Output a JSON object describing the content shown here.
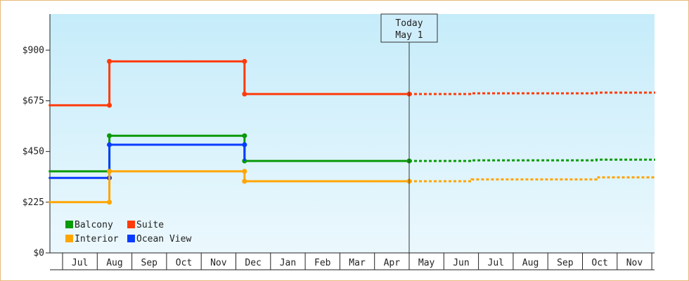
{
  "chart_data": {
    "type": "line",
    "y_ticks": [
      {
        "value": 0,
        "label": "$0"
      },
      {
        "value": 225,
        "label": "$225"
      },
      {
        "value": 450,
        "label": "$450"
      },
      {
        "value": 675,
        "label": "$675"
      },
      {
        "value": 900,
        "label": "$900"
      }
    ],
    "ylim": [
      0,
      1060
    ],
    "months": [
      "Jul",
      "Aug",
      "Sep",
      "Oct",
      "Nov",
      "Dec",
      "Jan",
      "Feb",
      "Mar",
      "Apr",
      "May",
      "Jun",
      "Jul",
      "Aug",
      "Sep",
      "Oct",
      "Nov"
    ],
    "today": {
      "line1": "Today",
      "line2": "May 1",
      "x": 10.0
    },
    "series": [
      {
        "name": "Suite",
        "color": "#ff3b0a",
        "points": [
          [
            -0.4,
            655
          ],
          [
            1.35,
            655
          ],
          [
            1.35,
            850
          ],
          [
            5.25,
            850
          ],
          [
            5.25,
            705
          ],
          [
            10.0,
            705
          ]
        ],
        "forecast": [
          [
            10.0,
            705
          ],
          [
            11.8,
            705
          ],
          [
            11.8,
            708
          ],
          [
            15.4,
            708
          ],
          [
            15.4,
            711
          ],
          [
            17.1,
            711
          ]
        ],
        "markers": [
          [
            1.35,
            655
          ],
          [
            1.35,
            850
          ],
          [
            5.25,
            850
          ],
          [
            5.25,
            705
          ],
          [
            10.0,
            705
          ]
        ]
      },
      {
        "name": "Balcony",
        "color": "#0a9a0a",
        "points": [
          [
            -0.4,
            362
          ],
          [
            1.35,
            362
          ],
          [
            1.35,
            520
          ],
          [
            5.25,
            520
          ],
          [
            5.25,
            408
          ],
          [
            10.0,
            408
          ]
        ],
        "forecast": [
          [
            10.0,
            408
          ],
          [
            11.8,
            408
          ],
          [
            11.8,
            411
          ],
          [
            15.4,
            411
          ],
          [
            15.4,
            414
          ],
          [
            17.1,
            414
          ]
        ],
        "markers": [
          [
            1.35,
            362
          ],
          [
            1.35,
            520
          ],
          [
            5.25,
            520
          ],
          [
            5.25,
            408
          ],
          [
            10.0,
            408
          ]
        ]
      },
      {
        "name": "Ocean View",
        "color": "#0a3cff",
        "points": [
          [
            -0.4,
            333
          ],
          [
            1.35,
            333
          ],
          [
            1.35,
            480
          ],
          [
            5.25,
            480
          ],
          [
            5.25,
            408
          ]
        ],
        "forecast": [],
        "markers": [
          [
            1.35,
            333
          ],
          [
            1.35,
            480
          ],
          [
            5.25,
            480
          ]
        ]
      },
      {
        "name": "Interior",
        "color": "#ffa500",
        "points": [
          [
            -0.4,
            225
          ],
          [
            1.35,
            225
          ],
          [
            1.35,
            362
          ],
          [
            5.25,
            362
          ],
          [
            5.25,
            318
          ],
          [
            10.0,
            318
          ]
        ],
        "forecast": [
          [
            10.0,
            318
          ],
          [
            11.8,
            318
          ],
          [
            11.8,
            326
          ],
          [
            15.4,
            326
          ],
          [
            15.4,
            335
          ],
          [
            17.1,
            335
          ]
        ],
        "markers": [
          [
            1.35,
            225
          ],
          [
            1.35,
            362
          ],
          [
            5.25,
            362
          ],
          [
            5.25,
            318
          ],
          [
            10.0,
            318
          ]
        ]
      }
    ],
    "legend": {
      "placement": "bottom-left",
      "items": [
        {
          "label": "Balcony",
          "color": "#0a9a0a"
        },
        {
          "label": "Suite",
          "color": "#ff3b0a"
        },
        {
          "label": "Interior",
          "color": "#ffa500"
        },
        {
          "label": "Ocean View",
          "color": "#0a3cff"
        }
      ]
    }
  }
}
